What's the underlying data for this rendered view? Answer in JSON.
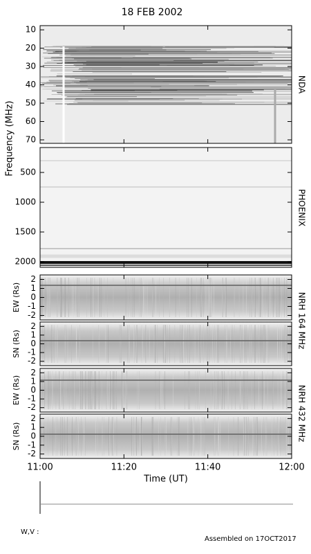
{
  "title": "18 FEB 2002",
  "ylabel": "Frequency (MHz)",
  "xlabel": "Time (UT)",
  "footer_label": "W,V :",
  "assembled": "Assembled on 17OCT2017",
  "chart_data": [
    {
      "type": "spectrogram",
      "label": "NDA",
      "ylim": [
        71.9,
        7.7
      ],
      "yticks": [
        10,
        20,
        30,
        40,
        50,
        60,
        70
      ]
    },
    {
      "type": "spectrogram",
      "label": "PHOENIX",
      "ylim": [
        2093,
        81
      ],
      "yticks": [
        500,
        1000,
        1500,
        2000
      ]
    },
    {
      "type": "spectrogram",
      "label": "NRH 164 MHz",
      "ylabel": "EW (Rs)",
      "ylim": [
        -2.5,
        2.5
      ],
      "yticks": [
        -2,
        -1,
        0,
        1,
        2
      ]
    },
    {
      "type": "spectrogram",
      "ylabel": "SN (Rs)",
      "ylim": [
        -2.5,
        2.5
      ],
      "yticks": [
        -2,
        -1,
        0,
        1,
        2
      ]
    },
    {
      "type": "spectrogram",
      "label": "NRH 432 MHz",
      "ylabel": "EW (Rs)",
      "ylim": [
        -2.5,
        2.5
      ],
      "yticks": [
        -2,
        -1,
        0,
        1,
        2
      ]
    },
    {
      "type": "spectrogram",
      "ylabel": "SN (Rs)",
      "ylim": [
        -2.5,
        2.5
      ],
      "yticks": [
        -2,
        -1,
        0,
        1,
        2
      ],
      "xlim": [
        "11:00",
        "12:00"
      ],
      "xticks": [
        "11:00",
        "11:20",
        "11:40",
        "12:00"
      ]
    }
  ]
}
